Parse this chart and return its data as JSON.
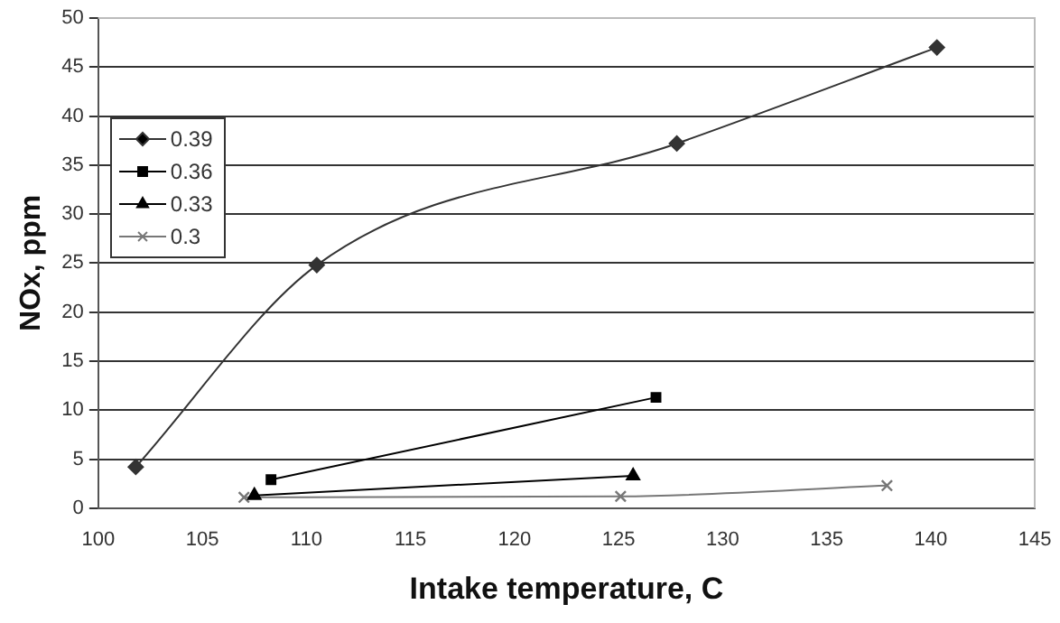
{
  "chart_data": {
    "type": "line",
    "xlabel": "Intake temperature, C",
    "ylabel": "NOx, ppm",
    "xlim": [
      100,
      145
    ],
    "xticks": [
      100,
      105,
      110,
      115,
      120,
      125,
      130,
      135,
      140,
      145
    ],
    "ylim": [
      0,
      50
    ],
    "yticks": [
      0,
      5,
      10,
      15,
      20,
      25,
      30,
      35,
      40,
      45,
      50
    ],
    "grid": "y",
    "legend": "top left",
    "line_style": "solid",
    "series": [
      {
        "name": "0.39",
        "color": "#333333",
        "marker": "diamond",
        "x": [
          101.8,
          110.5,
          127.8,
          140.3
        ],
        "values": [
          4.2,
          24.8,
          37.2,
          47
        ]
      },
      {
        "name": "0.36",
        "color": "#000000",
        "marker": "square",
        "x": [
          108.3,
          126.8
        ],
        "values": [
          2.9,
          11.3
        ]
      },
      {
        "name": "0.33",
        "color": "#000000",
        "marker": "triangle",
        "x": [
          107.5,
          125.7
        ],
        "values": [
          1.3,
          3.3
        ]
      },
      {
        "name": "0.3",
        "color": "#777777",
        "marker": "cross",
        "x": [
          107,
          125.1,
          137.9
        ],
        "values": [
          1.1,
          1.2,
          2.3
        ]
      }
    ]
  }
}
